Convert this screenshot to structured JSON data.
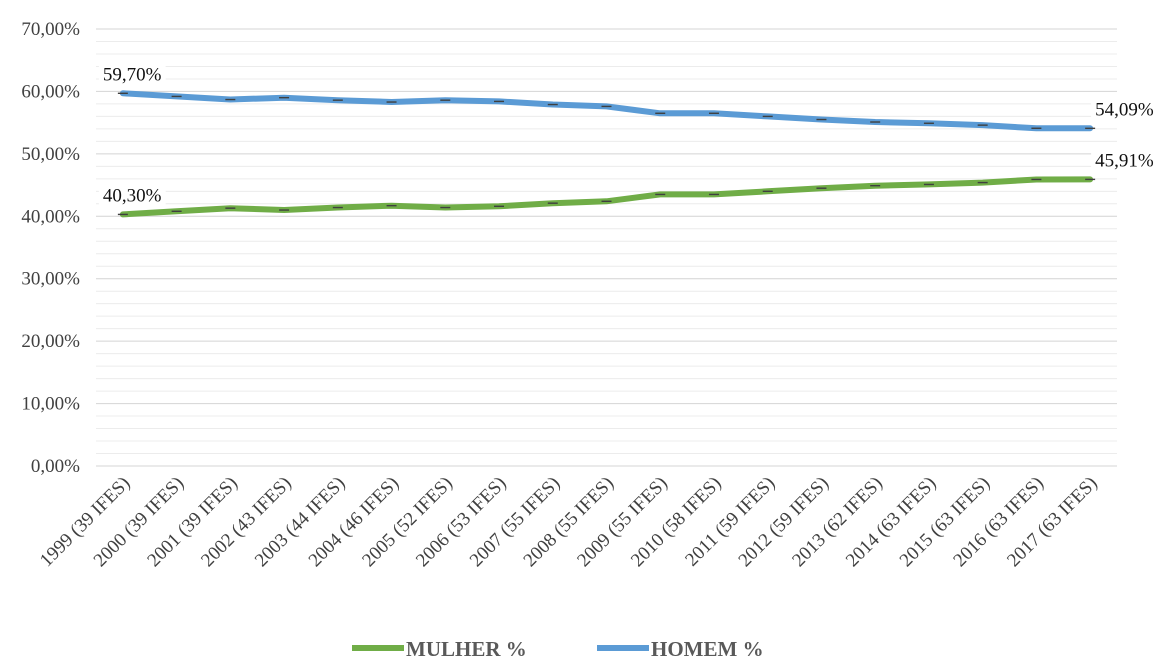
{
  "chart_data": {
    "type": "line",
    "title": "",
    "xlabel": "",
    "ylabel": "",
    "ylim": [
      0,
      70
    ],
    "y_ticks": [
      "0,00%",
      "10,00%",
      "20,00%",
      "30,00%",
      "40,00%",
      "50,00%",
      "60,00%",
      "70,00%"
    ],
    "grid": true,
    "legend_position": "bottom",
    "categories": [
      "1999 (39 IFES)",
      "2000 (39 IFES)",
      "2001 (39 IFES)",
      "2002 (43 IFES)",
      "2003 (44 IFES)",
      "2004 (46 IFES)",
      "2005 (52 IFES)",
      "2006 (53 IFES)",
      "2007 (55 IFES)",
      "2008 (55 IFES)",
      "2009 (55 IFES)",
      "2010 (58 IFES)",
      "2011 (59 IFES)",
      "2012 (59 IFES)",
      "2013 (62 IFES)",
      "2014 (63 IFES)",
      "2015 (63 IFES)",
      "2016 (63 IFES)",
      "2017 (63 IFES)"
    ],
    "series": [
      {
        "name": "MULHER %",
        "color": "#70ad47",
        "values": [
          40.3,
          40.8,
          41.3,
          41.0,
          41.4,
          41.7,
          41.4,
          41.6,
          42.1,
          42.4,
          43.5,
          43.5,
          44.0,
          44.5,
          44.9,
          45.1,
          45.4,
          45.9,
          45.91
        ],
        "data_labels": [
          {
            "index": 0,
            "text": "40,30%"
          },
          {
            "index": 18,
            "text": "45,91%"
          }
        ]
      },
      {
        "name": "HOMEM %",
        "color": "#5b9bd5",
        "values": [
          59.7,
          59.2,
          58.7,
          59.0,
          58.6,
          58.3,
          58.6,
          58.4,
          57.9,
          57.6,
          56.5,
          56.5,
          56.0,
          55.5,
          55.1,
          54.9,
          54.6,
          54.1,
          54.09
        ],
        "data_labels": [
          {
            "index": 0,
            "text": "59,70%"
          },
          {
            "index": 18,
            "text": "54,09%"
          }
        ]
      }
    ]
  }
}
